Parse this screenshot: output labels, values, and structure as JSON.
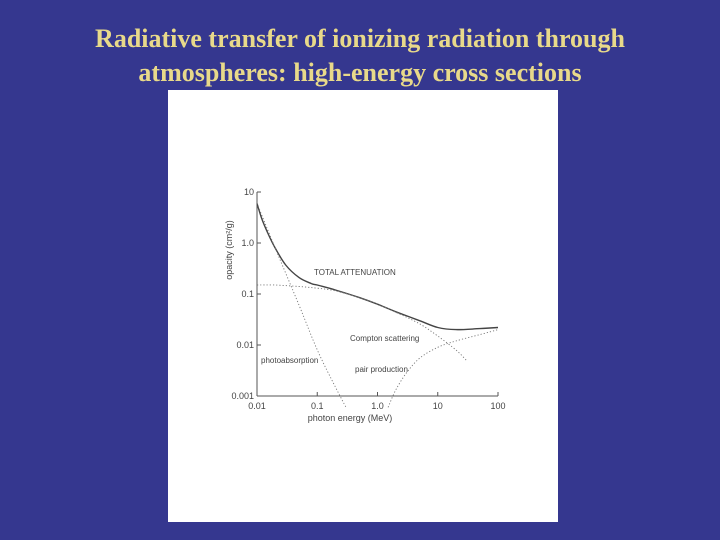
{
  "slide": {
    "title_line1": "Radiative transfer of ionizing radiation through",
    "title_line2": "atmospheres: high-energy cross sections",
    "background": "#35378f",
    "title_color": "#e8d98a"
  },
  "chart_data": {
    "type": "line",
    "x_scale": "log",
    "y_scale": "log",
    "xlim": [
      0.01,
      100
    ],
    "ylim": [
      0.001,
      10
    ],
    "xlabel": "photon energy (MeV)",
    "ylabel": "opacity (cm²/g)",
    "x_ticks": [
      "0.01",
      "0.1",
      "1.0",
      "10",
      "100"
    ],
    "y_ticks": [
      "0.001",
      "0.01",
      "0.1",
      "1.0",
      "10"
    ],
    "series": [
      {
        "name": "TOTAL ATTENUATION",
        "style": "solid",
        "x": [
          0.01,
          0.012,
          0.015,
          0.02,
          0.03,
          0.05,
          0.08,
          0.1,
          0.2,
          0.5,
          1,
          2,
          5,
          10,
          20,
          50,
          100
        ],
        "y": [
          6.0,
          3.0,
          1.6,
          0.8,
          0.37,
          0.21,
          0.16,
          0.15,
          0.12,
          0.085,
          0.063,
          0.045,
          0.03,
          0.022,
          0.02,
          0.021,
          0.022
        ]
      },
      {
        "name": "Compton scattering",
        "style": "dotted",
        "x": [
          0.01,
          0.02,
          0.05,
          0.1,
          0.2,
          0.5,
          1,
          2,
          5,
          10,
          20,
          30
        ],
        "y": [
          0.15,
          0.15,
          0.14,
          0.13,
          0.115,
          0.085,
          0.063,
          0.044,
          0.026,
          0.015,
          0.008,
          0.005
        ]
      },
      {
        "name": "photoabsorption",
        "style": "dotted",
        "x": [
          0.01,
          0.02,
          0.05,
          0.1,
          0.2,
          0.3
        ],
        "y": [
          6.0,
          0.8,
          0.06,
          0.008,
          0.0015,
          0.0006
        ]
      },
      {
        "name": "pair production",
        "style": "dotted",
        "x": [
          1.5,
          2,
          3,
          5,
          10,
          20,
          50,
          100
        ],
        "y": [
          0.0006,
          0.0013,
          0.0028,
          0.0055,
          0.009,
          0.012,
          0.016,
          0.02
        ]
      }
    ]
  }
}
